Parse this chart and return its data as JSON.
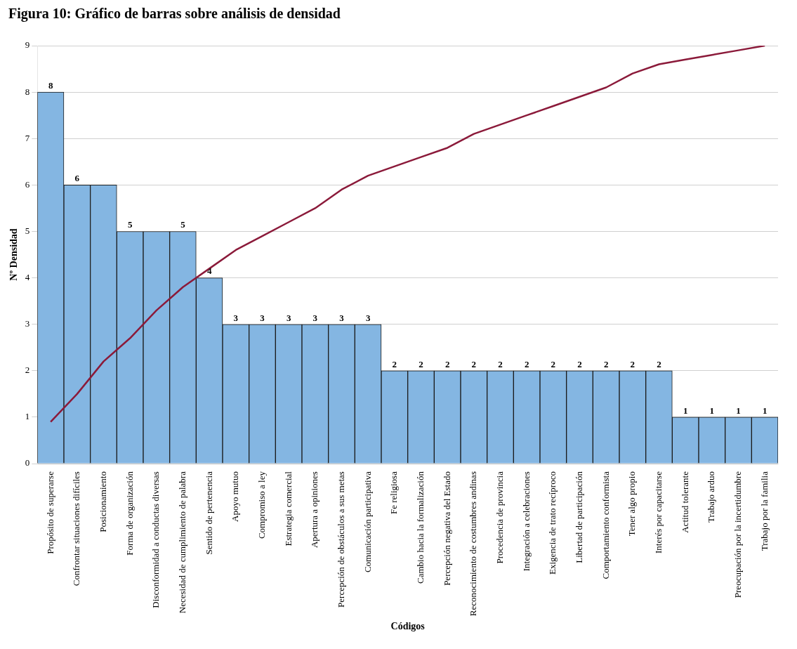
{
  "chart_data": {
    "type": "bar",
    "title": "Figura 10: Gráfico de barras sobre análisis de densidad",
    "xlabel": "Códigos",
    "ylabel": "Nº Densidad",
    "categories": [
      "Propósito de superarse",
      "Confrontar situaciones difíciles",
      "Posicionamiento",
      "Forma de organización",
      "Disconformidad a conductas diversas",
      "Necesidad de cumplimiento de palabra",
      "Sentido de pertenencia",
      "Apoyo mutuo",
      "Compromiso a ley",
      "Estrategia comercial",
      "Apertura a opiniones",
      "Percepción de obstáculos a sus metas",
      "Comunicación participativa",
      "Fe religiosa",
      "Cambio hacia la formalización",
      "Percepción negativa del Estado",
      "Reconocimiento de costumbres andinas",
      "Procedencia de provincia",
      "Integración a celebraciones",
      "Exigencia de trato recíproco",
      "Libertad de participación",
      "Comportamiento conformista",
      "Tener algo propio",
      "Interés por capacitarse",
      "Actitud tolerante",
      "Trabajo arduo",
      "Preocupación por la incertidumbre",
      "Trabajo por la familia"
    ],
    "series": [
      {
        "color": "#84b6e2",
        "values": [
          8,
          6,
          6,
          5,
          5,
          5,
          4,
          3,
          3,
          3,
          3,
          3,
          3,
          2,
          2,
          2,
          2,
          2,
          2,
          2,
          2,
          2,
          2,
          2,
          1,
          1,
          1,
          1
        ],
        "value_labels": [
          "8",
          "6",
          null,
          "5",
          null,
          "5",
          "4",
          "3",
          "3",
          "3",
          "3",
          "3",
          "3",
          "2",
          "2",
          "2",
          "2",
          "2",
          "2",
          "2",
          "2",
          "2",
          "2",
          "2",
          "1",
          "1",
          "1",
          "1"
        ]
      },
      {
        "type": "line",
        "color": "#8b1a3a",
        "marker": "none",
        "values": [
          0.9,
          1.5,
          2.2,
          2.7,
          3.3,
          3.8,
          4.2,
          4.6,
          4.9,
          5.2,
          5.5,
          5.9,
          6.2,
          6.4,
          6.6,
          6.8,
          7.1,
          7.3,
          7.5,
          7.7,
          7.9,
          8.1,
          8.4,
          8.6,
          8.7,
          8.8,
          8.9,
          9.0
        ]
      }
    ],
    "ylim": [
      0,
      9
    ],
    "yticks": [
      0,
      1,
      2,
      3,
      4,
      5,
      6,
      7,
      8,
      9
    ],
    "grid": "y"
  }
}
